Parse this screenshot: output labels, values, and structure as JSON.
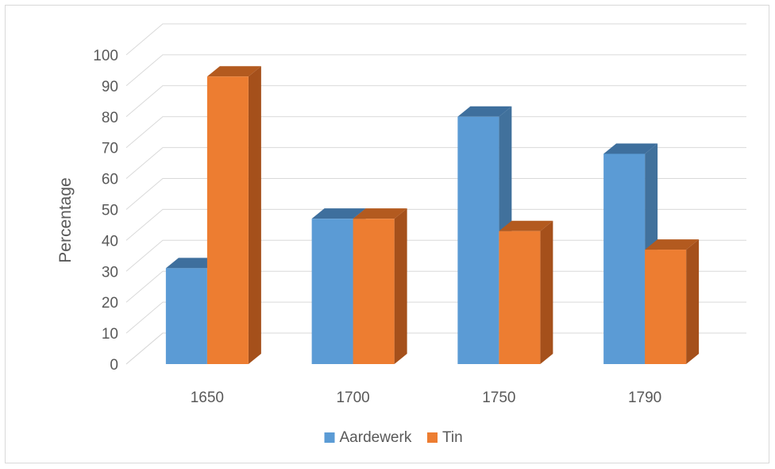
{
  "chart_data": {
    "type": "bar",
    "title": "",
    "xlabel": "",
    "ylabel": "Percentage",
    "categories": [
      "1650",
      "1700",
      "1750",
      "1790"
    ],
    "series": [
      {
        "name": "Aardewerk",
        "values": [
          31,
          47,
          80,
          68
        ],
        "color": "#5b9bd5",
        "side_color": "#41719c",
        "top_color": "#3e6f9d"
      },
      {
        "name": "Tin",
        "values": [
          93,
          47,
          43,
          37
        ],
        "color": "#ed7d31",
        "side_color": "#a5501b",
        "top_color": "#b35a1f"
      }
    ],
    "ylim": [
      0,
      100
    ],
    "yticks": [
      0,
      10,
      20,
      30,
      40,
      50,
      60,
      70,
      80,
      90,
      100
    ],
    "grid": true,
    "legend_position": "bottom",
    "three_d": true
  }
}
